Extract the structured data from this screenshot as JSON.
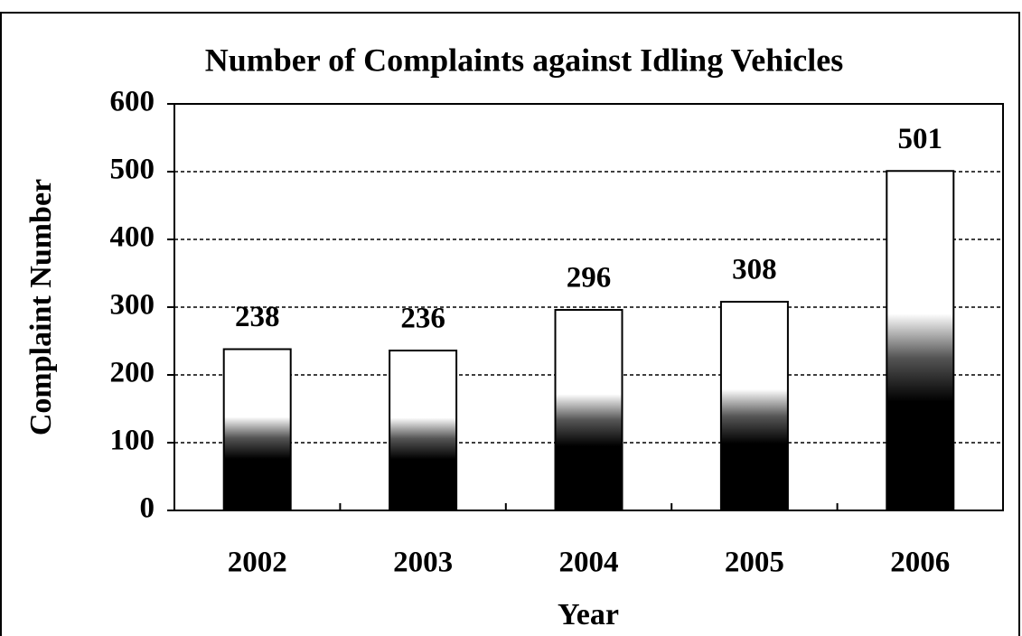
{
  "chart_data": {
    "type": "bar",
    "title": "Number of Complaints against Idling Vehicles",
    "x_label": "Year",
    "y_label": "Complaint Number",
    "categories": [
      "2002",
      "2003",
      "2004",
      "2005",
      "2006"
    ],
    "values": [
      238,
      236,
      296,
      308,
      501
    ],
    "color": "#000000",
    "ylim": [
      0,
      600
    ],
    "yticks": [
      0,
      100,
      200,
      300,
      400,
      500,
      600
    ],
    "grid": true
  }
}
